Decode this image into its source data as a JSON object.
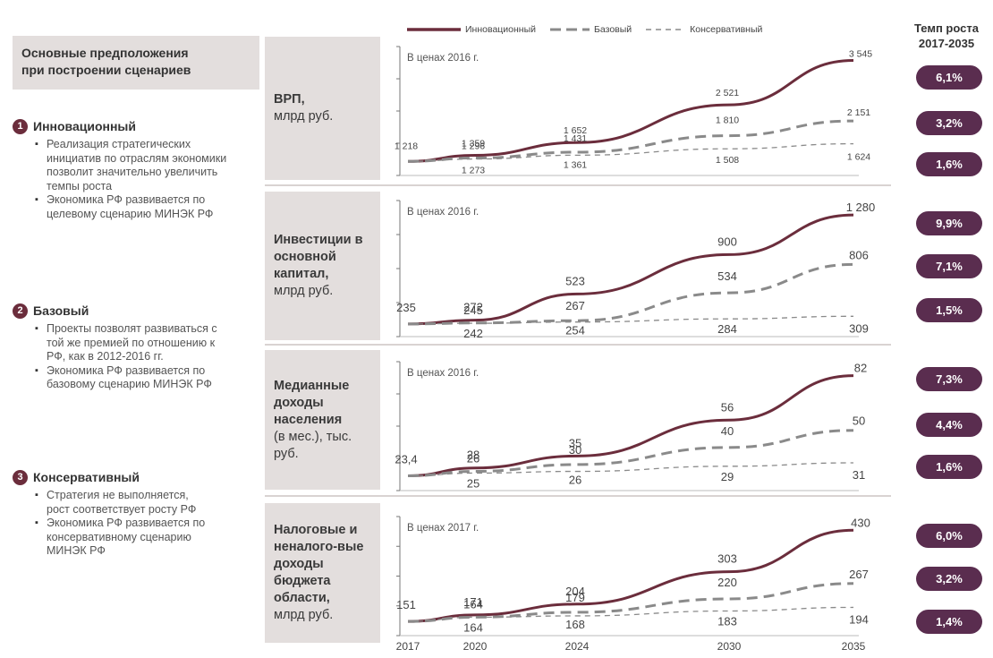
{
  "legend": {
    "innov": "Инновационный",
    "base": "Базовый",
    "cons": "Консервативный"
  },
  "rate_title_1": "Темп роста",
  "rate_title_2": "2017-2035",
  "assumptions": {
    "title_1": "Основные предположения",
    "title_2": "при построении сценариев",
    "scenarios": [
      {
        "num": "1",
        "name": "Инновационный",
        "bullets": [
          "Реализация стратегических инициатив по отраслям экономики позволит значительно увеличить темпы роста",
          "Экономика РФ развивается по целевому сценарию МИНЭК РФ"
        ]
      },
      {
        "num": "2",
        "name": "Базовый",
        "bullets": [
          "Проекты позволят развиваться с той же премией по отношению к РФ, как в 2012-2016 гг.",
          "Экономика РФ развивается по базовому сценарию МИНЭК РФ"
        ]
      },
      {
        "num": "3",
        "name": "Консервативный",
        "bullets": [
          "Стратегия не выполняется, рост соответствует росту РФ",
          "Экономика РФ развивается по консервативному сценарию МИНЭК РФ"
        ]
      }
    ]
  },
  "row_labels": [
    {
      "bold": "ВРП,",
      "normal": "млрд руб."
    },
    {
      "bold": "Инвестиции в основной капитал,",
      "normal": "млрд руб."
    },
    {
      "bold": "Медианные доходы населения",
      "normal": "(в мес.), тыс. руб."
    },
    {
      "bold": "Налоговые и неналого-вые доходы бюджета области,",
      "normal": "млрд руб."
    }
  ],
  "colors": {
    "innov": "#6b2d3c",
    "base": "#8a8a8a",
    "cons": "#8a8a8a",
    "pill": "#5a2d4f",
    "panel": "#e3dedd"
  },
  "chart_data": [
    {
      "type": "line",
      "title": "ВРП, млрд руб.",
      "note": "В ценах 2016 г.",
      "x": [
        2017,
        2020,
        2024,
        2030,
        2035
      ],
      "series": [
        {
          "name": "Инновационный",
          "values": [
            1218,
            1359,
            1652,
            2521,
            3545
          ],
          "labels": [
            "1 218",
            "1 359",
            "1 652",
            "2 521",
            "3 545"
          ]
        },
        {
          "name": "Базовый",
          "values": [
            1218,
            1296,
            1431,
            1810,
            2151
          ],
          "labels": [
            "",
            "1 296",
            "1 431",
            "1 810",
            "2 151"
          ]
        },
        {
          "name": "Консервативный",
          "values": [
            1218,
            1273,
            1361,
            1508,
            1624
          ],
          "labels": [
            "",
            "1 273",
            "1 361",
            "1 508",
            "1 624"
          ]
        }
      ],
      "growth": [
        "6,1%",
        "3,2%",
        "1,6%"
      ],
      "ylim": [
        1100,
        3700
      ]
    },
    {
      "type": "line",
      "title": "Инвестиции в основной капитал, млрд руб.",
      "note": "В ценах 2016 г.",
      "x": [
        2017,
        2020,
        2024,
        2030,
        2035
      ],
      "series": [
        {
          "name": "Инновационный",
          "values": [
            235,
            272,
            523,
            900,
            1280
          ],
          "labels": [
            "235",
            "272",
            "523",
            "900",
            "1 280"
          ]
        },
        {
          "name": "Базовый",
          "values": [
            235,
            245,
            267,
            534,
            806
          ],
          "labels": [
            "",
            "245",
            "267",
            "534",
            "806"
          ]
        },
        {
          "name": "Консервативный",
          "values": [
            235,
            242,
            254,
            284,
            309
          ],
          "labels": [
            "",
            "242",
            "254",
            "284",
            "309"
          ]
        }
      ],
      "growth": [
        "9,9%",
        "7,1%",
        "1,5%"
      ],
      "ylim": [
        200,
        1350
      ]
    },
    {
      "type": "line",
      "title": "Медианные доходы населения (в мес.), тыс. руб.",
      "note": "В ценах 2016 г.",
      "x": [
        2017,
        2020,
        2024,
        2030,
        2035
      ],
      "series": [
        {
          "name": "Инновационный",
          "values": [
            23.4,
            28,
            35,
            56,
            82
          ],
          "labels": [
            "23,4",
            "28",
            "35",
            "56",
            "82"
          ]
        },
        {
          "name": "Базовый",
          "values": [
            23.4,
            26,
            30,
            40,
            50
          ],
          "labels": [
            "",
            "26",
            "30",
            "40",
            "50"
          ]
        },
        {
          "name": "Консервативный",
          "values": [
            23.4,
            25,
            26,
            29,
            31
          ],
          "labels": [
            "",
            "25",
            "26",
            "29",
            "31"
          ]
        }
      ],
      "growth": [
        "7,3%",
        "4,4%",
        "1,6%"
      ],
      "ylim": [
        20,
        86
      ]
    },
    {
      "type": "line",
      "title": "Налоговые и неналоговые доходы бюджета области, млрд руб.",
      "note": "В ценах 2017 г.",
      "x": [
        2017,
        2020,
        2024,
        2030,
        2035
      ],
      "series": [
        {
          "name": "Инновационный",
          "values": [
            151,
            171,
            204,
            303,
            430
          ],
          "labels": [
            "151",
            "171",
            "204",
            "303",
            "430"
          ]
        },
        {
          "name": "Базовый",
          "values": [
            151,
            164,
            179,
            220,
            267
          ],
          "labels": [
            "",
            "164",
            "179",
            "220",
            "267"
          ]
        },
        {
          "name": "Консервативный",
          "values": [
            151,
            164,
            168,
            183,
            194
          ],
          "labels": [
            "",
            "164",
            "168",
            "183",
            "194"
          ]
        }
      ],
      "growth": [
        "6,0%",
        "3,2%",
        "1,4%"
      ],
      "ylim": [
        135,
        450
      ]
    }
  ],
  "x_ticks": [
    "2017",
    "2020",
    "2024",
    "2030",
    "2035"
  ]
}
